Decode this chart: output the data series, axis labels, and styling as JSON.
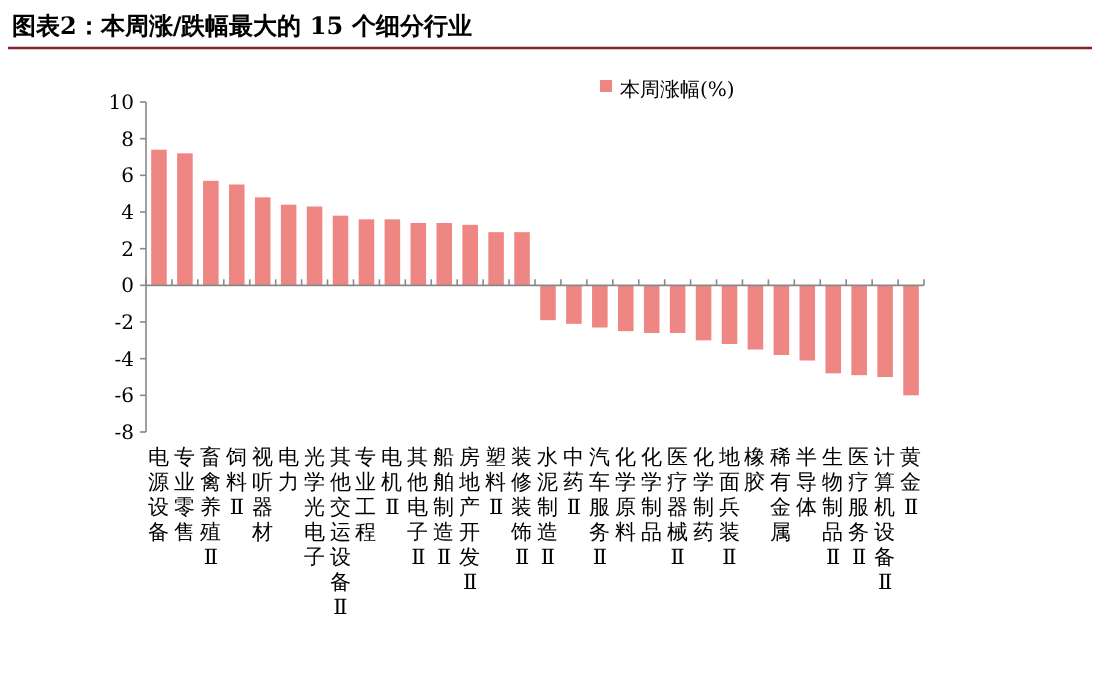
{
  "chart_data": {
    "type": "bar",
    "title": "图表2：本周涨/跌幅最大的 15 个细分行业",
    "legend": "top right",
    "ylim": [
      -8,
      10
    ],
    "yticks": [
      -8,
      -6,
      -4,
      -2,
      0,
      2,
      4,
      6,
      8,
      10
    ],
    "categories": [
      "电源设备",
      "专业零售",
      "畜禽养殖Ⅱ",
      "饲料Ⅱ",
      "视听器材",
      "电力",
      "光学光电子",
      "其他交运设备Ⅱ",
      "专业工程",
      "电机Ⅱ",
      "其他电子Ⅱ",
      "船舶制造Ⅱ",
      "房地产开发Ⅱ",
      "塑料Ⅱ",
      "装修装饰Ⅱ",
      "水泥制造Ⅱ",
      "中药Ⅱ",
      "汽车服务Ⅱ",
      "化学原料",
      "化学制品",
      "医疗器械Ⅱ",
      "化学制药",
      "地面兵装Ⅱ",
      "橡胶",
      "稀有金属",
      "半导体",
      "生物制品Ⅱ",
      "医疗服务Ⅱ",
      "计算机设备Ⅱ",
      "黄金Ⅱ"
    ],
    "series": [
      {
        "name": "本周涨幅(%)",
        "color": "#ee8683",
        "values": [
          7.4,
          7.2,
          5.7,
          5.5,
          4.8,
          4.4,
          4.3,
          3.8,
          3.6,
          3.6,
          3.4,
          3.4,
          3.3,
          2.9,
          2.9,
          -1.9,
          -2.1,
          -2.3,
          -2.5,
          -2.6,
          -2.6,
          -3.0,
          -3.2,
          -3.5,
          -3.8,
          -4.1,
          -4.8,
          -4.9,
          -5.0,
          -6.0
        ]
      }
    ]
  }
}
